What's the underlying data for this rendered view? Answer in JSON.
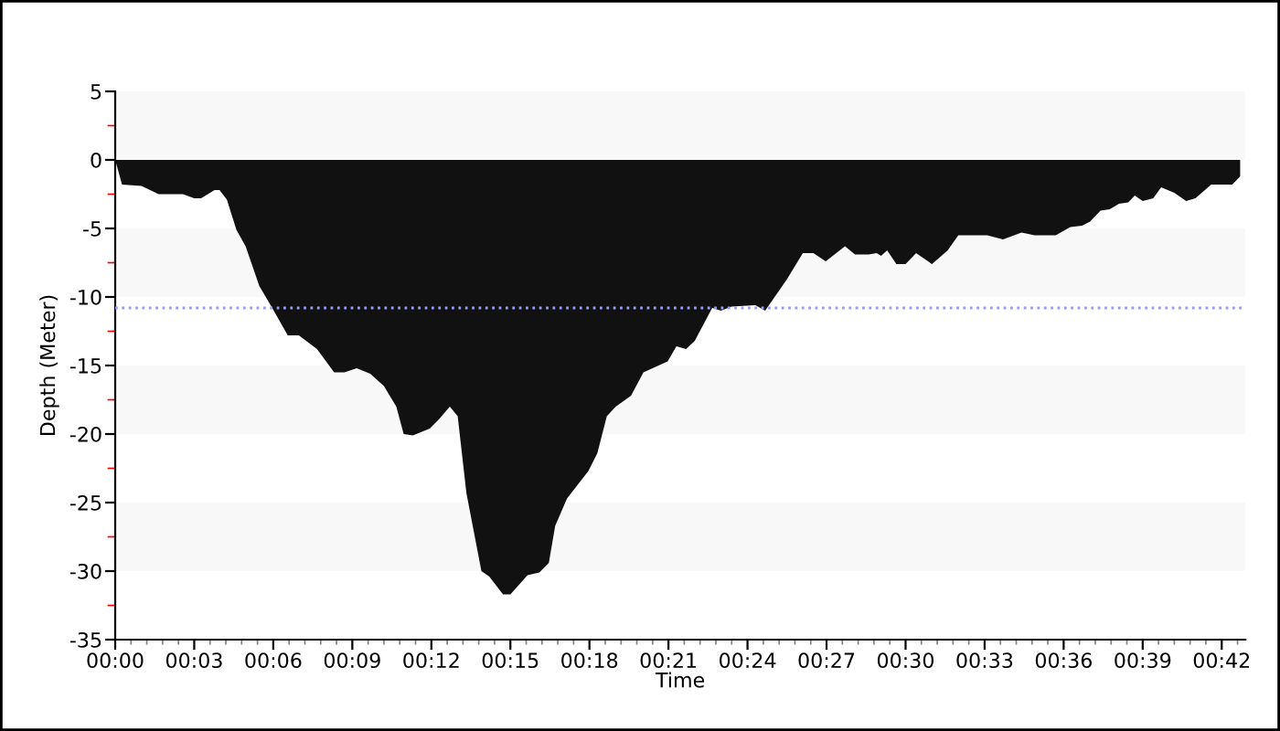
{
  "chart_data": {
    "type": "area",
    "xlabel": "Time",
    "ylabel": "Depth (Meter)",
    "x": [
      0,
      0.26,
      1.0,
      1.65,
      2.57,
      3.0,
      3.26,
      3.77,
      3.96,
      4.24,
      4.6,
      4.95,
      5.47,
      5.93,
      6.55,
      6.97,
      7.66,
      8.31,
      8.7,
      9.17,
      9.68,
      10.2,
      10.67,
      10.95,
      11.3,
      11.94,
      12.3,
      12.7,
      13.0,
      13.33,
      13.9,
      14.2,
      14.72,
      15.0,
      15.65,
      16.1,
      16.46,
      16.7,
      17.15,
      17.96,
      18.3,
      18.66,
      19.0,
      19.58,
      20.05,
      20.97,
      21.3,
      21.67,
      22.0,
      22.66,
      22.99,
      23.4,
      24.3,
      24.67,
      25.5,
      26.1,
      26.5,
      26.97,
      27.7,
      28.08,
      28.6,
      28.9,
      29.07,
      29.3,
      29.65,
      30.0,
      30.4,
      31.0,
      31.6,
      32.0,
      33.1,
      33.7,
      34.4,
      34.9,
      35.7,
      36.25,
      36.7,
      37.0,
      37.4,
      37.75,
      38.1,
      38.45,
      38.7,
      39.0,
      39.4,
      39.7,
      40.2,
      40.65,
      41.0,
      41.6,
      42.4,
      42.7
    ],
    "series": [
      {
        "color": "#111111",
        "values": [
          0,
          -1.8,
          -1.9,
          -2.5,
          -2.5,
          -2.8,
          -2.8,
          -2.2,
          -2.2,
          -2.9,
          -5.1,
          -6.3,
          -9.2,
          -10.7,
          -12.8,
          -12.8,
          -13.8,
          -15.5,
          -15.5,
          -15.2,
          -15.6,
          -16.5,
          -18.0,
          -20.0,
          -20.1,
          -19.6,
          -18.9,
          -18.0,
          -18.7,
          -24.3,
          -30.0,
          -30.4,
          -31.7,
          -31.7,
          -30.3,
          -30.1,
          -29.4,
          -26.7,
          -24.7,
          -22.7,
          -21.4,
          -18.7,
          -18.0,
          -17.2,
          -15.5,
          -14.7,
          -13.6,
          -13.8,
          -13.2,
          -10.8,
          -11.0,
          -10.7,
          -10.6,
          -11.0,
          -8.7,
          -6.8,
          -6.8,
          -7.4,
          -6.3,
          -6.9,
          -6.9,
          -6.8,
          -7.0,
          -6.6,
          -7.6,
          -7.6,
          -6.8,
          -7.6,
          -6.6,
          -5.5,
          -5.5,
          -5.8,
          -5.3,
          -5.5,
          -5.5,
          -4.9,
          -4.8,
          -4.5,
          -3.7,
          -3.6,
          -3.2,
          -3.1,
          -2.6,
          -3.0,
          -2.8,
          -2.0,
          -2.4,
          -3.0,
          -2.8,
          -1.8,
          -1.8,
          -1.2
        ]
      }
    ],
    "xlim": [
      0,
      42.9
    ],
    "xticks": [
      {
        "value": 0,
        "label": "00:00"
      },
      {
        "value": 3,
        "label": "00:03"
      },
      {
        "value": 6,
        "label": "00:06"
      },
      {
        "value": 9,
        "label": "00:09"
      },
      {
        "value": 12,
        "label": "00:12"
      },
      {
        "value": 15,
        "label": "00:15"
      },
      {
        "value": 18,
        "label": "00:18"
      },
      {
        "value": 21,
        "label": "00:21"
      },
      {
        "value": 24,
        "label": "00:24"
      },
      {
        "value": 27,
        "label": "00:27"
      },
      {
        "value": 30,
        "label": "00:30"
      },
      {
        "value": 33,
        "label": "00:33"
      },
      {
        "value": 36,
        "label": "00:36"
      },
      {
        "value": 39,
        "label": "00:39"
      },
      {
        "value": 42,
        "label": "00:42"
      }
    ],
    "ylim": [
      -35,
      5
    ],
    "yticks": [
      -35,
      -30,
      -25,
      -20,
      -15,
      -10,
      -5,
      0,
      5
    ],
    "ref_lines": [
      {
        "axis": "y",
        "value": -10.8,
        "color": "#9999ff",
        "line_style": "dotted"
      }
    ],
    "bands": [
      {
        "axis": "y",
        "from": 0,
        "to": 5,
        "color": "#f8f8f8"
      },
      {
        "axis": "y",
        "from": -10,
        "to": -5,
        "color": "#f8f8f8"
      },
      {
        "axis": "y",
        "from": -20,
        "to": -15,
        "color": "#f8f8f8"
      },
      {
        "axis": "y",
        "from": -30,
        "to": -25,
        "color": "#f8f8f8"
      }
    ],
    "grid": false,
    "legend": false
  }
}
